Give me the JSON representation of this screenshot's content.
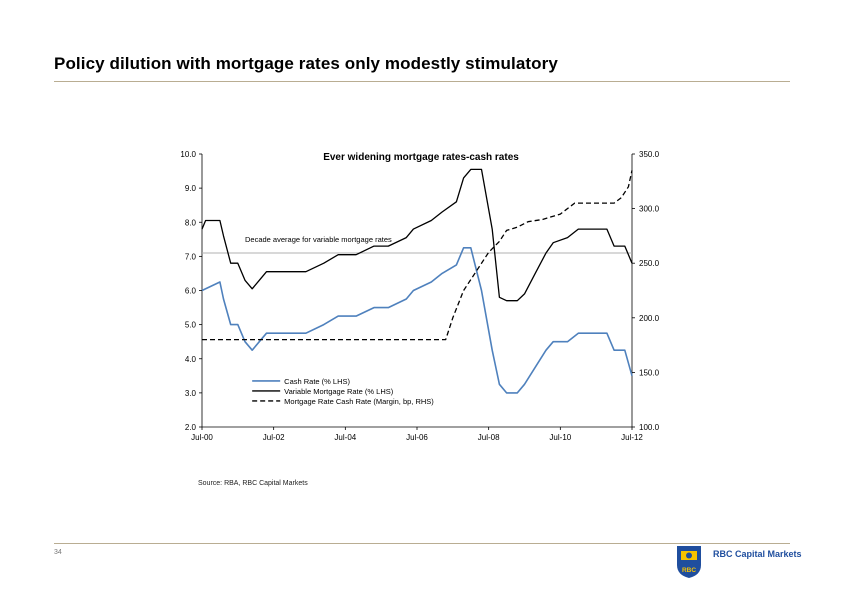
{
  "slide": {
    "title": "Policy dilution with mortgage rates only modestly stimulatory",
    "source": "Source: RBA, RBC Capital Markets",
    "page_number": "34",
    "logo_text": "RBC Capital Markets",
    "logo_mark": "RBC"
  },
  "colors": {
    "cash": "#4f81bd",
    "mortgage": "#000000",
    "margin": "#000000",
    "rule": "#b9ad92",
    "brand": "#1f4e9e"
  },
  "chart_data": {
    "type": "line",
    "title": "Ever widening mortgage rates-cash rates",
    "xlabel": "",
    "ylabel_left": "",
    "ylabel_right": "",
    "x_ticks": [
      "Jul-00",
      "Jul-02",
      "Jul-04",
      "Jul-06",
      "Jul-08",
      "Jul-10",
      "Jul-12"
    ],
    "xlim": [
      2000.5,
      2012.5
    ],
    "ylim_left": [
      2.0,
      10.0
    ],
    "ylim_right": [
      100.0,
      350.0
    ],
    "y_ticks_left": [
      "10.0",
      "9.0",
      "8.0",
      "7.0",
      "6.0",
      "5.0",
      "4.0",
      "3.0",
      "2.0"
    ],
    "y_ticks_right": [
      "350.0",
      "300.0",
      "250.0",
      "200.0",
      "150.0",
      "100.0"
    ],
    "reference_line": {
      "value": 7.1,
      "axis": "left",
      "label": "Decade average for variable mortgage rates"
    },
    "legend_position": "bottom-center",
    "series": [
      {
        "name": "Cash Rate (% LHS)",
        "axis": "left",
        "style": "solid",
        "x": [
          2000.5,
          2001.0,
          2001.1,
          2001.3,
          2001.5,
          2001.7,
          2001.9,
          2002.1,
          2002.3,
          2002.5,
          2002.9,
          2003.4,
          2003.9,
          2004.3,
          2004.8,
          2005.3,
          2005.7,
          2006.2,
          2006.4,
          2006.9,
          2007.2,
          2007.6,
          2007.8,
          2008.0,
          2008.3,
          2008.6,
          2008.8,
          2009.0,
          2009.3,
          2009.5,
          2009.8,
          2010.1,
          2010.3,
          2010.7,
          2011.0,
          2011.5,
          2011.8,
          2012.0,
          2012.3,
          2012.5
        ],
        "values": [
          6.0,
          6.25,
          5.75,
          5.0,
          5.0,
          4.5,
          4.25,
          4.5,
          4.75,
          4.75,
          4.75,
          4.75,
          5.0,
          5.25,
          5.25,
          5.5,
          5.5,
          5.75,
          6.0,
          6.25,
          6.5,
          6.75,
          7.25,
          7.25,
          6.0,
          4.25,
          3.25,
          3.0,
          3.0,
          3.25,
          3.75,
          4.25,
          4.5,
          4.5,
          4.75,
          4.75,
          4.75,
          4.25,
          4.25,
          3.5
        ]
      },
      {
        "name": "Variable Mortgage Rate (% LHS)",
        "axis": "left",
        "style": "solid",
        "x": [
          2000.5,
          2000.6,
          2001.0,
          2001.1,
          2001.3,
          2001.5,
          2001.7,
          2001.9,
          2002.1,
          2002.3,
          2002.5,
          2002.9,
          2003.4,
          2003.9,
          2004.3,
          2004.8,
          2005.3,
          2005.7,
          2006.2,
          2006.4,
          2006.9,
          2007.2,
          2007.6,
          2007.8,
          2008.0,
          2008.3,
          2008.6,
          2008.8,
          2009.0,
          2009.3,
          2009.5,
          2009.8,
          2010.1,
          2010.3,
          2010.7,
          2011.0,
          2011.5,
          2011.8,
          2012.0,
          2012.3,
          2012.5
        ],
        "values": [
          7.8,
          8.05,
          8.05,
          7.6,
          6.8,
          6.8,
          6.3,
          6.05,
          6.3,
          6.55,
          6.55,
          6.55,
          6.55,
          6.8,
          7.05,
          7.05,
          7.3,
          7.3,
          7.55,
          7.8,
          8.05,
          8.3,
          8.6,
          9.3,
          9.55,
          9.55,
          7.8,
          5.8,
          5.7,
          5.7,
          5.9,
          6.5,
          7.1,
          7.4,
          7.55,
          7.8,
          7.8,
          7.8,
          7.3,
          7.3,
          6.8
        ]
      },
      {
        "name": "Mortgage Rate Cash Rate (Margin, bp, RHS)",
        "axis": "right",
        "style": "dashed",
        "x": [
          2000.5,
          2003.0,
          2005.0,
          2007.0,
          2007.3,
          2007.5,
          2007.8,
          2008.0,
          2008.5,
          2008.8,
          2009.0,
          2009.3,
          2009.6,
          2010.0,
          2010.5,
          2010.9,
          2011.3,
          2011.6,
          2012.0,
          2012.2,
          2012.4,
          2012.5
        ],
        "values": [
          180.0,
          180.0,
          180.0,
          180.0,
          180.0,
          200.0,
          225.0,
          235.0,
          260.0,
          270.0,
          280.0,
          283.0,
          288.0,
          290.0,
          295.0,
          305.0,
          305.0,
          305.0,
          305.0,
          310.0,
          320.0,
          335.0
        ]
      }
    ]
  }
}
